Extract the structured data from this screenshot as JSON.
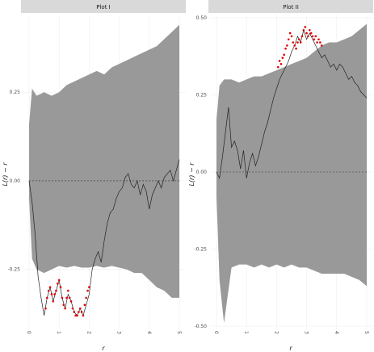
{
  "chart_data": [
    {
      "type": "line",
      "title": "Plot I",
      "xlabel": "r",
      "ylabel": "L(r) − r",
      "xlim": [
        0,
        5
      ],
      "ylim": [
        -0.41,
        0.46
      ],
      "xticks": [
        "0",
        "1",
        "2",
        "3",
        "4",
        "5"
      ],
      "yticks": [
        "0.25",
        "0.00",
        "-0.25"
      ],
      "ytick_values": [
        0.25,
        0.0,
        -0.25
      ],
      "reference_line": 0,
      "envelope": {
        "x": [
          0,
          0.1,
          0.25,
          0.5,
          0.75,
          1.0,
          1.25,
          1.5,
          1.75,
          2.0,
          2.25,
          2.5,
          2.75,
          3.0,
          3.25,
          3.5,
          3.75,
          4.0,
          4.25,
          4.5,
          4.75,
          5.0
        ],
        "upper": [
          0.16,
          0.26,
          0.24,
          0.25,
          0.24,
          0.25,
          0.27,
          0.28,
          0.29,
          0.3,
          0.31,
          0.3,
          0.32,
          0.33,
          0.34,
          0.35,
          0.36,
          0.37,
          0.38,
          0.4,
          0.42,
          0.44
        ],
        "lower": [
          -0.05,
          -0.22,
          -0.25,
          -0.26,
          -0.25,
          -0.24,
          -0.245,
          -0.24,
          -0.245,
          -0.245,
          -0.24,
          -0.245,
          -0.24,
          -0.245,
          -0.25,
          -0.26,
          -0.26,
          -0.28,
          -0.3,
          -0.31,
          -0.33,
          -0.33
        ]
      },
      "observed": {
        "x": [
          0,
          0.1,
          0.2,
          0.3,
          0.4,
          0.5,
          0.6,
          0.7,
          0.8,
          0.9,
          1.0,
          1.1,
          1.2,
          1.3,
          1.4,
          1.5,
          1.6,
          1.7,
          1.8,
          1.9,
          2.0,
          2.1,
          2.2,
          2.3,
          2.4,
          2.5,
          2.6,
          2.7,
          2.8,
          2.9,
          3.0,
          3.1,
          3.2,
          3.3,
          3.4,
          3.5,
          3.6,
          3.7,
          3.8,
          3.9,
          4.0,
          4.1,
          4.2,
          4.3,
          4.4,
          4.5,
          4.6,
          4.7,
          4.8,
          4.9,
          5.0
        ],
        "y": [
          0.0,
          -0.06,
          -0.15,
          -0.27,
          -0.33,
          -0.38,
          -0.33,
          -0.3,
          -0.34,
          -0.31,
          -0.28,
          -0.33,
          -0.36,
          -0.32,
          -0.34,
          -0.37,
          -0.38,
          -0.36,
          -0.38,
          -0.35,
          -0.32,
          -0.25,
          -0.22,
          -0.2,
          -0.23,
          -0.17,
          -0.12,
          -0.09,
          -0.08,
          -0.05,
          -0.03,
          -0.02,
          0.01,
          0.02,
          -0.01,
          -0.02,
          0.0,
          -0.04,
          -0.01,
          -0.03,
          -0.08,
          -0.04,
          -0.02,
          0.0,
          -0.02,
          0.01,
          0.02,
          0.03,
          0.0,
          0.03,
          0.06
        ]
      },
      "outside_points": {
        "x": [
          0.55,
          0.6,
          0.65,
          0.7,
          0.75,
          0.8,
          0.85,
          0.9,
          0.95,
          1.0,
          1.05,
          1.1,
          1.15,
          1.2,
          1.25,
          1.3,
          1.35,
          1.4,
          1.45,
          1.5,
          1.55,
          1.6,
          1.65,
          1.7,
          1.75,
          1.8,
          1.85,
          1.9,
          1.95,
          2.0
        ],
        "y": [
          -0.36,
          -0.33,
          -0.31,
          -0.3,
          -0.32,
          -0.34,
          -0.32,
          -0.31,
          -0.29,
          -0.28,
          -0.3,
          -0.33,
          -0.35,
          -0.36,
          -0.33,
          -0.31,
          -0.33,
          -0.34,
          -0.36,
          -0.37,
          -0.38,
          -0.38,
          -0.37,
          -0.36,
          -0.37,
          -0.38,
          -0.35,
          -0.33,
          -0.31,
          -0.3
        ]
      }
    },
    {
      "type": "line",
      "title": "Plot II",
      "xlabel": "r",
      "ylabel": "L(r) − r",
      "xlim": [
        0,
        5
      ],
      "ylim": [
        -0.5,
        0.5
      ],
      "xticks": [
        "0",
        "1",
        "2",
        "3",
        "4",
        "5"
      ],
      "yticks": [
        "0.50",
        "0.25",
        "0.00",
        "-0.25",
        "-0.50"
      ],
      "ytick_values": [
        0.5,
        0.25,
        0.0,
        -0.25,
        -0.5
      ],
      "reference_line": 0,
      "envelope": {
        "x": [
          0,
          0.1,
          0.25,
          0.5,
          0.75,
          1.0,
          1.25,
          1.5,
          1.75,
          2.0,
          2.25,
          2.5,
          2.75,
          3.0,
          3.25,
          3.5,
          3.75,
          4.0,
          4.25,
          4.5,
          4.75,
          5.0
        ],
        "upper": [
          0.17,
          0.28,
          0.3,
          0.3,
          0.29,
          0.3,
          0.31,
          0.31,
          0.32,
          0.33,
          0.34,
          0.35,
          0.36,
          0.37,
          0.39,
          0.41,
          0.42,
          0.42,
          0.43,
          0.44,
          0.46,
          0.48
        ],
        "lower": [
          -0.08,
          -0.35,
          -0.49,
          -0.31,
          -0.3,
          -0.3,
          -0.31,
          -0.3,
          -0.31,
          -0.3,
          -0.31,
          -0.3,
          -0.31,
          -0.31,
          -0.32,
          -0.33,
          -0.33,
          -0.33,
          -0.33,
          -0.34,
          -0.35,
          -0.37
        ]
      },
      "observed": {
        "x": [
          0,
          0.05,
          0.1,
          0.2,
          0.3,
          0.4,
          0.5,
          0.6,
          0.7,
          0.8,
          0.9,
          1.0,
          1.1,
          1.2,
          1.3,
          1.4,
          1.5,
          1.6,
          1.7,
          1.8,
          1.9,
          2.0,
          2.1,
          2.2,
          2.3,
          2.4,
          2.5,
          2.6,
          2.7,
          2.8,
          2.9,
          3.0,
          3.1,
          3.2,
          3.3,
          3.4,
          3.5,
          3.6,
          3.7,
          3.8,
          3.9,
          4.0,
          4.1,
          4.2,
          4.3,
          4.4,
          4.5,
          4.6,
          4.7,
          4.8,
          4.9,
          5.0
        ],
        "y": [
          0.0,
          -0.01,
          -0.02,
          0.05,
          0.13,
          0.21,
          0.08,
          0.1,
          0.07,
          0.01,
          0.07,
          -0.02,
          0.03,
          0.06,
          0.02,
          0.05,
          0.09,
          0.13,
          0.16,
          0.2,
          0.24,
          0.27,
          0.3,
          0.32,
          0.34,
          0.36,
          0.39,
          0.41,
          0.44,
          0.42,
          0.46,
          0.43,
          0.45,
          0.43,
          0.41,
          0.39,
          0.37,
          0.38,
          0.36,
          0.34,
          0.35,
          0.33,
          0.35,
          0.34,
          0.32,
          0.3,
          0.31,
          0.29,
          0.28,
          0.26,
          0.25,
          0.24
        ]
      },
      "outside_points": {
        "x": [
          2.05,
          2.1,
          2.15,
          2.2,
          2.25,
          2.3,
          2.35,
          2.4,
          2.45,
          2.5,
          2.55,
          2.6,
          2.65,
          2.7,
          2.75,
          2.8,
          2.85,
          2.9,
          2.95,
          3.0,
          3.05,
          3.1,
          3.15,
          3.2,
          3.25,
          3.3,
          3.35,
          3.4,
          3.45,
          3.5
        ],
        "y": [
          0.34,
          0.36,
          0.35,
          0.37,
          0.38,
          0.4,
          0.41,
          0.43,
          0.45,
          0.44,
          0.42,
          0.41,
          0.4,
          0.42,
          0.43,
          0.42,
          0.44,
          0.46,
          0.47,
          0.45,
          0.44,
          0.46,
          0.45,
          0.44,
          0.43,
          0.44,
          0.42,
          0.43,
          0.42,
          0.41
        ]
      }
    }
  ]
}
